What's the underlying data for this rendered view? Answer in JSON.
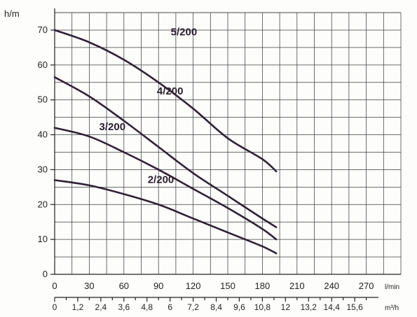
{
  "chart_data": {
    "type": "line",
    "ylabel": "h/m",
    "x_unit_primary": "l/min",
    "x_unit_secondary": "m³/h",
    "ylim": [
      0,
      70
    ],
    "xlim": [
      0,
      300
    ],
    "y_ticks": [
      "0",
      "10",
      "20",
      "30",
      "40",
      "50",
      "60",
      "70"
    ],
    "x_ticks_primary": [
      "0",
      "30",
      "60",
      "90",
      "120",
      "150",
      "180",
      "210",
      "240",
      "270"
    ],
    "x_ticks_secondary": [
      "0",
      "1,2",
      "2,4",
      "3,6",
      "4,8",
      "6",
      "7,2",
      "8,4",
      "9,6",
      "10,8",
      "12",
      "13,2",
      "14,4",
      "15,6"
    ],
    "x_ticks_secondary_lpm": [
      0,
      20,
      40,
      60,
      80,
      100,
      120,
      140,
      160,
      180,
      200,
      220,
      240,
      260
    ],
    "grid": true,
    "series": [
      {
        "name": "5/200",
        "color": "#2e2233",
        "label_at": [
          112,
          68.5
        ],
        "points": [
          [
            0,
            70
          ],
          [
            30,
            66.5
          ],
          [
            60,
            61.5
          ],
          [
            90,
            55
          ],
          [
            120,
            47.5
          ],
          [
            150,
            39
          ],
          [
            180,
            33
          ],
          [
            192,
            29.5
          ]
        ]
      },
      {
        "name": "4/200",
        "color": "#2e2233",
        "label_at": [
          100,
          51.5
        ],
        "points": [
          [
            0,
            56.5
          ],
          [
            30,
            51
          ],
          [
            60,
            44
          ],
          [
            90,
            36.5
          ],
          [
            120,
            29
          ],
          [
            150,
            22.5
          ],
          [
            180,
            16
          ],
          [
            192,
            13.5
          ]
        ]
      },
      {
        "name": "3/200",
        "color": "#2e2233",
        "label_at": [
          50,
          41.3
        ],
        "points": [
          [
            0,
            42
          ],
          [
            30,
            39.5
          ],
          [
            60,
            35
          ],
          [
            90,
            30
          ],
          [
            120,
            24.5
          ],
          [
            150,
            19
          ],
          [
            180,
            13
          ],
          [
            192,
            10
          ]
        ]
      },
      {
        "name": "2/200",
        "color": "#2e2233",
        "label_at": [
          92,
          26.2
        ],
        "points": [
          [
            0,
            27
          ],
          [
            30,
            25.5
          ],
          [
            60,
            23
          ],
          [
            90,
            20
          ],
          [
            120,
            16
          ],
          [
            150,
            12
          ],
          [
            180,
            8
          ],
          [
            192,
            6
          ]
        ]
      }
    ]
  }
}
